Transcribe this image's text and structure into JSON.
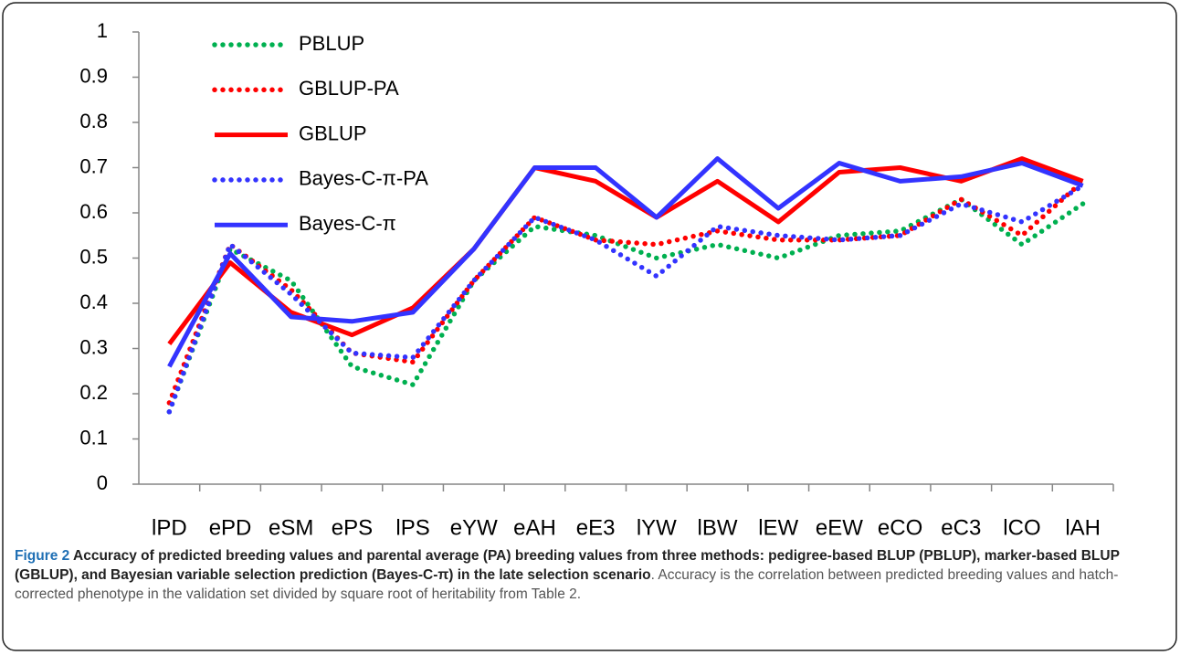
{
  "chart_data": {
    "type": "line",
    "categories": [
      "lPD",
      "ePD",
      "eSM",
      "ePS",
      "lPS",
      "eYW",
      "eAH",
      "eE3",
      "lYW",
      "lBW",
      "lEW",
      "eEW",
      "eCO",
      "eC3",
      "lCO",
      "lAH"
    ],
    "series": [
      {
        "name": "PBLUP",
        "color": "#00b050",
        "style": "dotted",
        "values": [
          0.16,
          0.52,
          0.45,
          0.26,
          0.22,
          0.45,
          0.57,
          0.55,
          0.5,
          0.53,
          0.5,
          0.55,
          0.56,
          0.63,
          0.53,
          0.62
        ]
      },
      {
        "name": "GBLUP-PA",
        "color": "#ff0000",
        "style": "dotted",
        "values": [
          0.18,
          0.53,
          0.43,
          0.29,
          0.27,
          0.45,
          0.59,
          0.54,
          0.53,
          0.56,
          0.54,
          0.54,
          0.55,
          0.63,
          0.55,
          0.67
        ]
      },
      {
        "name": "GBLUP",
        "color": "#ff0000",
        "style": "solid",
        "values": [
          0.31,
          0.49,
          0.38,
          0.33,
          0.39,
          0.52,
          0.7,
          0.67,
          0.59,
          0.67,
          0.58,
          0.69,
          0.7,
          0.67,
          0.72,
          0.67
        ]
      },
      {
        "name": "Bayes-C-π-PA",
        "color": "#3333ff",
        "style": "dotted",
        "values": [
          0.16,
          0.53,
          0.42,
          0.29,
          0.28,
          0.45,
          0.59,
          0.54,
          0.46,
          0.57,
          0.55,
          0.54,
          0.55,
          0.62,
          0.58,
          0.66
        ]
      },
      {
        "name": "Bayes-C-π",
        "color": "#3333ff",
        "style": "solid",
        "values": [
          0.26,
          0.51,
          0.37,
          0.36,
          0.38,
          0.52,
          0.7,
          0.7,
          0.59,
          0.72,
          0.61,
          0.71,
          0.67,
          0.68,
          0.71,
          0.66
        ]
      }
    ],
    "ylim": [
      0,
      1
    ],
    "yticks": [
      0,
      0.1,
      0.2,
      0.3,
      0.4,
      0.5,
      0.6,
      0.7,
      0.8,
      0.9,
      1
    ],
    "grid": false,
    "legend": "top-left"
  },
  "caption": {
    "label": "Figure 2",
    "title": "Accuracy of predicted breeding values and parental average (PA) breeding values from three methods: pedigree-based BLUP (PBLUP), marker-based BLUP (GBLUP), and Bayesian variable selection prediction (Bayes-C-π) in the late selection scenario",
    "text": ". Accuracy is the correlation between predicted breeding values and hatch-corrected phenotype in the validation set divided by square root of heritability from Table 2."
  }
}
